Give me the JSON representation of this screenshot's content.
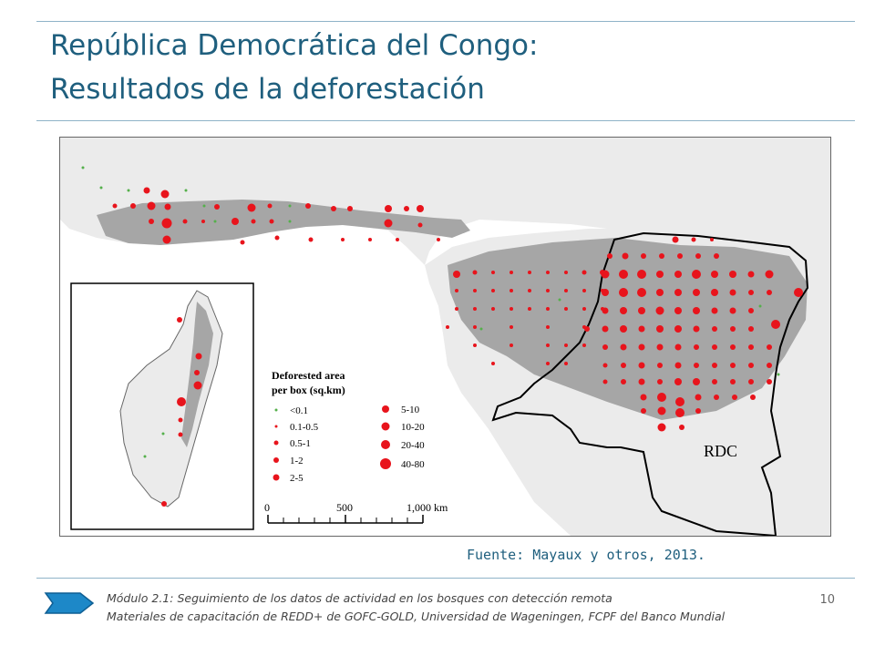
{
  "slide": {
    "title_line1": "República Democrática del Congo:",
    "title_line2": "Resultados de la deforestación",
    "source": "Fuente: Mayaux y otros, 2013.",
    "footer_line1": "Módulo 2.1: Seguimiento de los datos de actividad en los bosques con detección remota",
    "footer_line2": "Materiales de capacitación de REDD+ de GOFC-GOLD, Universidad de Wageningen, FCPF del Banco Mundial",
    "page_number": "10"
  },
  "map": {
    "country_label": "RDC",
    "legend": {
      "title_line1": "Deforested area",
      "title_line2": "per box (sq.km)",
      "classes": [
        "<0.1",
        "0.1-0.5",
        "0.5-1",
        "1-2",
        "2-5",
        "5-10",
        "10-20",
        "20-40",
        "40-80"
      ]
    },
    "scale_bar": {
      "labels": [
        "0",
        "500",
        "1,000 km"
      ]
    },
    "colors": {
      "forest": "#a6a6a6",
      "land": "#ebebeb",
      "water": "#ffffff",
      "deforestation_marker": "#e8141c",
      "low_deforestation_marker": "#55b04b",
      "border": "#000000"
    }
  }
}
